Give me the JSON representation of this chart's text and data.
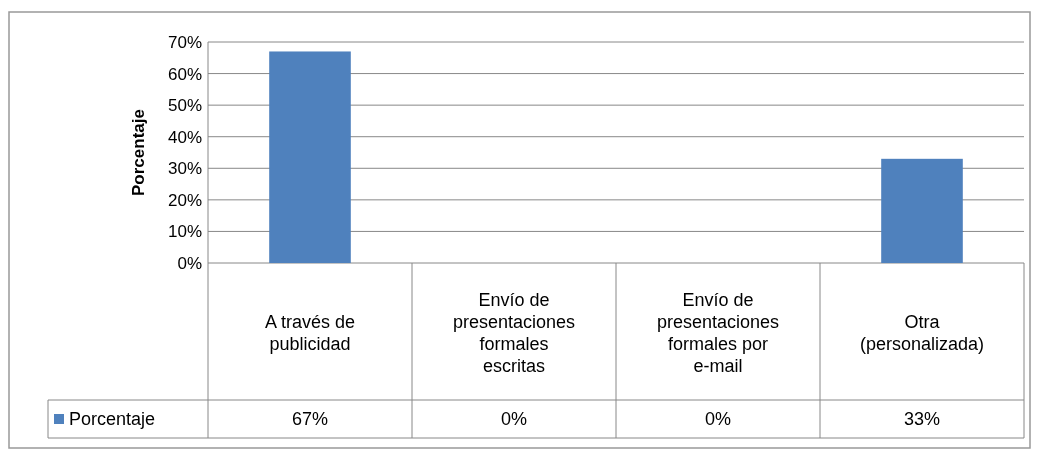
{
  "chart_data": {
    "type": "bar",
    "ylabel": "Porcentaje",
    "categories": [
      "A través de publicidad",
      "Envío de presentaciones formales escritas",
      "Envío de presentaciones formales por e-mail",
      "Otra (personalizada)"
    ],
    "series": [
      {
        "name": "Porcentaje",
        "color": "#4f81bd",
        "values": [
          67,
          0,
          0,
          33
        ],
        "value_labels": [
          "67%",
          "0%",
          "0%",
          "33%"
        ]
      }
    ],
    "ylim": [
      0,
      70
    ],
    "yticks": [
      {
        "value": 0,
        "label": "0%"
      },
      {
        "value": 10,
        "label": "10%"
      },
      {
        "value": 20,
        "label": "20%"
      },
      {
        "value": 30,
        "label": "30%"
      },
      {
        "value": 40,
        "label": "40%"
      },
      {
        "value": 50,
        "label": "50%"
      },
      {
        "value": 60,
        "label": "60%"
      },
      {
        "value": 70,
        "label": "70%"
      }
    ],
    "grid": "y",
    "legend": "bottom"
  }
}
